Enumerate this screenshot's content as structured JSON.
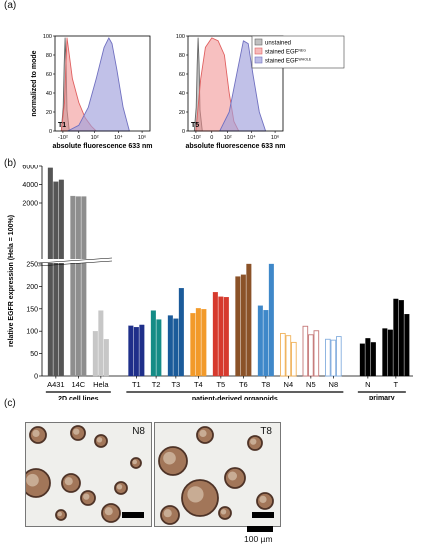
{
  "panels": {
    "a": "(a)",
    "b": "(b)",
    "c": "(c)"
  },
  "chart_data": [
    {
      "type": "area",
      "panel_label": "T1",
      "xlabel": "absolute fluorescence 633 nm",
      "ylabel": "normalized to mode",
      "x_ticks": [
        "-10²",
        "0",
        "10²",
        "10⁴",
        "10⁶"
      ],
      "y_ticks": [
        "0",
        "20",
        "40",
        "60",
        "80",
        "100"
      ],
      "ylim": [
        0,
        100
      ],
      "series": [
        {
          "name": "unstained",
          "color": "#666666",
          "x": [
            -0.55,
            -0.49,
            -0.46,
            -0.43,
            -0.4,
            -0.37,
            -0.3
          ],
          "y": [
            0,
            25,
            70,
            98,
            70,
            22,
            0
          ]
        },
        {
          "name": "stained EGF^NEG",
          "color": "#e06060",
          "x": [
            -0.55,
            -0.45,
            -0.4,
            -0.37,
            -0.3,
            -0.2,
            0.0,
            0.2,
            0.4,
            0.55
          ],
          "y": [
            0,
            30,
            75,
            98,
            80,
            55,
            30,
            14,
            5,
            0
          ]
        },
        {
          "name": "stained EGF^WHOLE",
          "color": "#7070c0",
          "x": [
            -0.35,
            0.0,
            0.3,
            0.55,
            0.8,
            0.95,
            1.05,
            1.2,
            1.4,
            1.6
          ],
          "y": [
            0,
            6,
            25,
            55,
            88,
            98,
            92,
            65,
            25,
            0
          ]
        }
      ]
    },
    {
      "type": "area",
      "panel_label": "T5",
      "xlabel": "absolute fluorescence 633 nm",
      "ylabel": "",
      "x_ticks": [
        "-10²",
        "0",
        "10²",
        "10⁴",
        "10⁶"
      ],
      "y_ticks": [
        "0",
        "20",
        "40",
        "60",
        "80",
        "100"
      ],
      "ylim": [
        0,
        100
      ],
      "series": [
        {
          "name": "unstained",
          "color": "#666666",
          "x": [
            -0.55,
            -0.49,
            -0.46,
            -0.43,
            -0.4,
            -0.37,
            -0.3
          ],
          "y": [
            0,
            25,
            70,
            98,
            70,
            22,
            0
          ]
        },
        {
          "name": "stained EGF^NEG",
          "color": "#e06060",
          "x": [
            -0.5,
            -0.35,
            -0.2,
            0.0,
            0.2,
            0.4,
            0.55,
            0.7,
            0.85
          ],
          "y": [
            0,
            55,
            88,
            98,
            95,
            80,
            40,
            10,
            0
          ]
        },
        {
          "name": "stained EGF^WHOLE",
          "color": "#7070c0",
          "x": [
            0.25,
            0.55,
            0.8,
            1.0,
            1.15,
            1.3,
            1.5,
            1.7
          ],
          "y": [
            0,
            20,
            62,
            95,
            92,
            60,
            20,
            0
          ]
        }
      ]
    },
    {
      "type": "bar",
      "ylabel": "relative EGFR expression (Hela = 100%)",
      "ylim_lower": [
        0,
        250
      ],
      "ylim_upper": [
        2000,
        6000
      ],
      "y_ticks_lower": [
        "0",
        "50",
        "100",
        "150",
        "200",
        "250"
      ],
      "y_ticks_upper": [
        "2000",
        "4000",
        "6000"
      ],
      "groups": [
        {
          "label": "2D cell lines",
          "categories": [
            "A431",
            "14C",
            "Hela"
          ]
        },
        {
          "label": "patient-derived organoids",
          "categories": [
            "T1",
            "T2",
            "T3",
            "T4",
            "T5",
            "T6",
            "T8",
            "N4",
            "N5",
            "N8"
          ]
        },
        {
          "label": "primary tissue",
          "categories": [
            "N",
            "T"
          ]
        }
      ],
      "bars": [
        {
          "category": "A431",
          "color": "#555555",
          "outline": false,
          "values": [
            5800,
            4300,
            4500
          ]
        },
        {
          "category": "14C",
          "color": "#8e8e8e",
          "outline": false,
          "values": [
            2750,
            2700,
            2700
          ]
        },
        {
          "category": "Hela",
          "color": "#c7c7c7",
          "outline": false,
          "values": [
            100,
            146,
            82
          ]
        },
        {
          "category": "T1",
          "color": "#1f2f8a",
          "outline": false,
          "values": [
            112,
            109,
            114
          ]
        },
        {
          "category": "T2",
          "color": "#148c86",
          "outline": false,
          "values": [
            146,
            126
          ]
        },
        {
          "category": "T3",
          "color": "#1b5b9a",
          "outline": false,
          "values": [
            135,
            128,
            196
          ]
        },
        {
          "category": "T4",
          "color": "#f29a2a",
          "outline": false,
          "values": [
            140,
            151,
            149
          ]
        },
        {
          "category": "T5",
          "color": "#d63a2e",
          "outline": false,
          "values": [
            187,
            177,
            176
          ]
        },
        {
          "category": "T6",
          "color": "#8b5228",
          "outline": false,
          "values": [
            222,
            226,
            255
          ]
        },
        {
          "category": "T8",
          "color": "#3f88c9",
          "outline": false,
          "values": [
            157,
            147,
            255
          ]
        },
        {
          "category": "N4",
          "color": "#f0b25a",
          "outline": true,
          "values": [
            95,
            90,
            75
          ]
        },
        {
          "category": "N5",
          "color": "#c57878",
          "outline": true,
          "values": [
            111,
            92,
            101
          ]
        },
        {
          "category": "N8",
          "color": "#84aede",
          "outline": true,
          "values": [
            82,
            80,
            88
          ]
        },
        {
          "category": "N",
          "color": "#000000",
          "outline": false,
          "values": [
            72,
            84,
            75
          ]
        },
        {
          "category": "T",
          "color": "#000000",
          "outline": false,
          "values": [
            106,
            103,
            172,
            169,
            138
          ]
        }
      ]
    }
  ],
  "micrographs": {
    "left_label": "N8",
    "right_label": "T8",
    "scale_label": "100 µm"
  }
}
